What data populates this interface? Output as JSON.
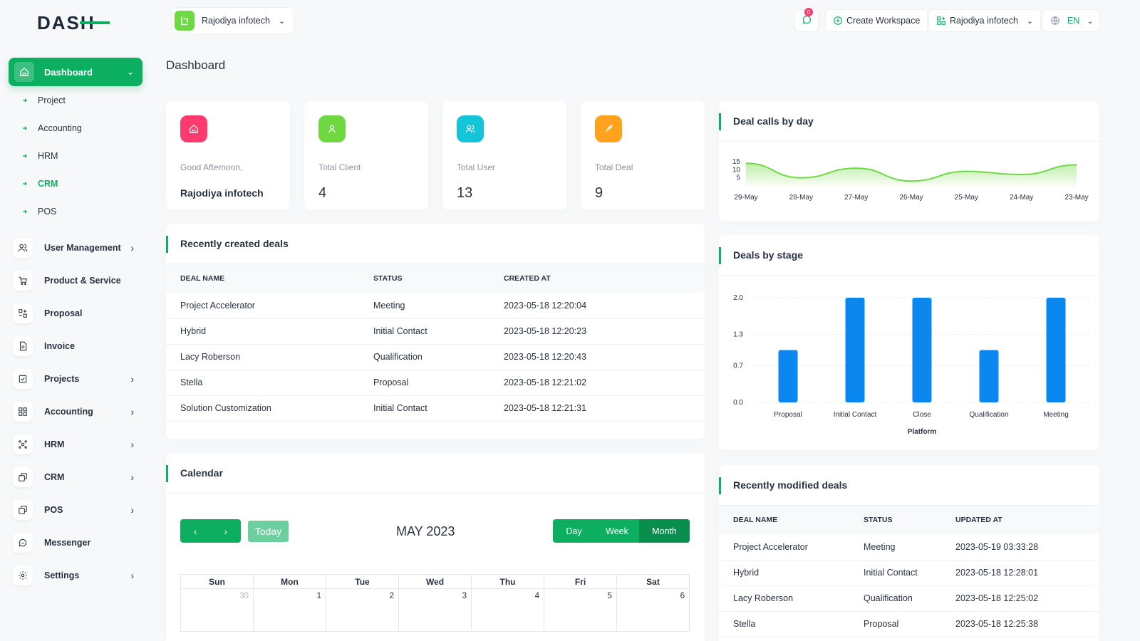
{
  "app": {
    "logo": "DASH"
  },
  "header": {
    "workspace": "Rajodiya infotech",
    "notification_count": "0",
    "create_workspace": "Create Workspace",
    "user_workspace": "Rajodiya infotech",
    "language": "EN"
  },
  "sidebar": {
    "dashboard": "Dashboard",
    "dashboard_sub": [
      {
        "label": "Project"
      },
      {
        "label": "Accounting"
      },
      {
        "label": "HRM"
      },
      {
        "label": "CRM"
      },
      {
        "label": "POS"
      }
    ],
    "items": [
      {
        "label": "User Management",
        "icon": "users-icon"
      },
      {
        "label": "Product & Service",
        "icon": "cart-icon"
      },
      {
        "label": "Proposal",
        "icon": "proposal-icon"
      },
      {
        "label": "Invoice",
        "icon": "invoice-icon"
      },
      {
        "label": "Projects",
        "icon": "checklist-icon"
      },
      {
        "label": "Accounting",
        "icon": "grid-icon"
      },
      {
        "label": "HRM",
        "icon": "hrm-icon"
      },
      {
        "label": "CRM",
        "icon": "crm-icon"
      },
      {
        "label": "POS",
        "icon": "pos-icon"
      },
      {
        "label": "Messenger",
        "icon": "chat-icon"
      },
      {
        "label": "Settings",
        "icon": "gear-icon"
      }
    ]
  },
  "page": {
    "title": "Dashboard"
  },
  "stats": {
    "greeting": "Good Afternoon,",
    "greeting_name": "Rajodiya infotech",
    "client_label": "Total Client",
    "client_value": "4",
    "user_label": "Total User",
    "user_value": "13",
    "deal_label": "Total Deal",
    "deal_value": "9"
  },
  "recent_deals": {
    "title": "Recently created deals",
    "columns": [
      "DEAL NAME",
      "STATUS",
      "CREATED AT"
    ],
    "rows": [
      [
        "Project Accelerator",
        "Meeting",
        "2023-05-18 12:20:04"
      ],
      [
        "Hybrid",
        "Initial Contact",
        "2023-05-18 12:20:23"
      ],
      [
        "Lacy Roberson",
        "Qualification",
        "2023-05-18 12:20:43"
      ],
      [
        "Stella",
        "Proposal",
        "2023-05-18 12:21:02"
      ],
      [
        "Solution Customization",
        "Initial Contact",
        "2023-05-18 12:21:31"
      ]
    ]
  },
  "calendar": {
    "title": "Calendar",
    "today": "Today",
    "month": "MAY 2023",
    "views": [
      "Day",
      "Week",
      "Month"
    ],
    "days": [
      "Sun",
      "Mon",
      "Tue",
      "Wed",
      "Thu",
      "Fri",
      "Sat"
    ],
    "first_row": [
      "30",
      "1",
      "2",
      "3",
      "4",
      "5",
      "6"
    ]
  },
  "modified_deals": {
    "title": "Recently modified deals",
    "columns": [
      "DEAL NAME",
      "STATUS",
      "UPDATED AT"
    ],
    "rows": [
      [
        "Project Accelerator",
        "Meeting",
        "2023-05-19 03:33:28"
      ],
      [
        "Hybrid",
        "Initial Contact",
        "2023-05-18 12:28:01"
      ],
      [
        "Lacy Roberson",
        "Qualification",
        "2023-05-18 12:25:02"
      ],
      [
        "Stella",
        "Proposal",
        "2023-05-18 12:25:38"
      ]
    ]
  },
  "chart_data": [
    {
      "type": "area",
      "title": "Deal calls by day",
      "x": [
        "29-May",
        "28-May",
        "27-May",
        "26-May",
        "25-May",
        "24-May",
        "23-May"
      ],
      "values": [
        14,
        5,
        11,
        3,
        9,
        7,
        13
      ],
      "yticks": [
        "15",
        "10",
        "5"
      ],
      "ylim": [
        0,
        15
      ],
      "color": "#6fd943"
    },
    {
      "type": "bar",
      "title": "Deals by stage",
      "categories": [
        "Proposal",
        "Initial Contact",
        "Close",
        "Qualification",
        "Meeting"
      ],
      "values": [
        1,
        2,
        2,
        1,
        2
      ],
      "yticks": [
        "2.0",
        "1.3",
        "0.7",
        "0.0"
      ],
      "ylim": [
        0,
        2
      ],
      "xlabel": "Platform",
      "color": "#0a88f0"
    }
  ],
  "colors": {
    "accent": "#0caf60",
    "pink": "#ff3a6e",
    "green": "#6fd943",
    "cyan": "#14c4d9",
    "orange": "#ffa21d"
  }
}
